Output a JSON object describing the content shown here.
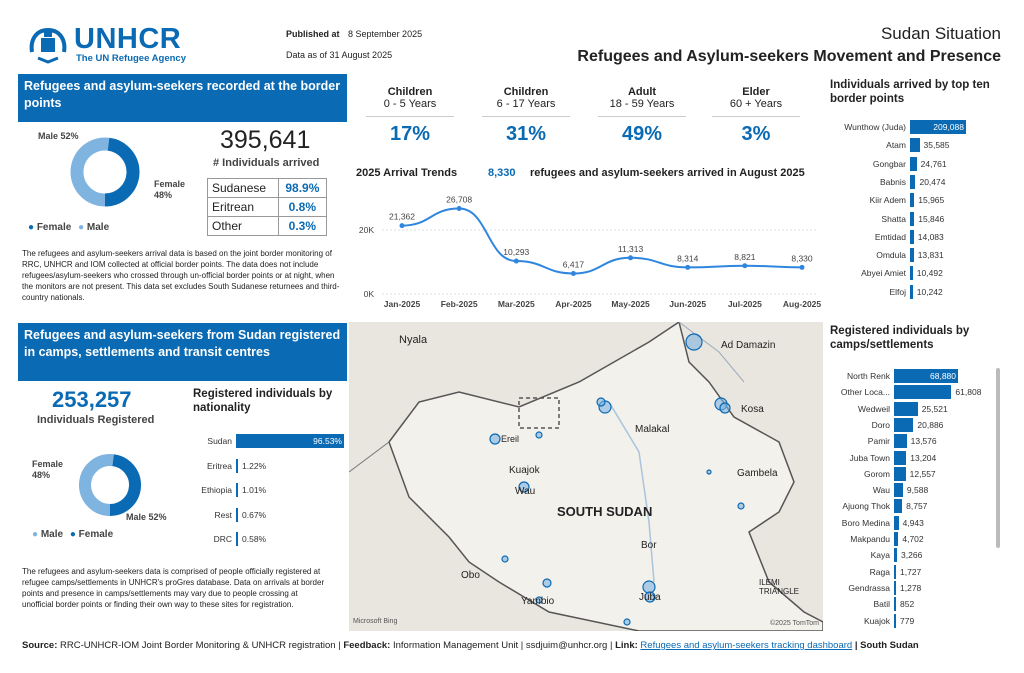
{
  "header": {
    "logo_text": "UNHCR",
    "logo_sub": "The UN Refugee Agency",
    "published_label": "Published at",
    "published_date": "8 September 2025",
    "data_as_of": "Data as of 31 August 2025",
    "situation": "Sudan Situation",
    "main_title": "Refugees and Asylum-seekers Movement and Presence"
  },
  "border": {
    "title": "Refugees and asylum-seekers recorded at the border points",
    "total": "395,641",
    "total_label": "# Individuals arrived",
    "donut": {
      "male_label": "Male 52%",
      "female_label": "Female 48%",
      "male_pct": 52,
      "female_pct": 48
    },
    "legend_female": "Female",
    "legend_male": "Male",
    "nationality": [
      {
        "name": "Sudanese",
        "pct": "98.9%"
      },
      {
        "name": "Eritrean",
        "pct": "0.8%"
      },
      {
        "name": "Other",
        "pct": "0.3%"
      }
    ],
    "note": "The refugees and asylum-seekers arrival data is based on the joint border monitoring of RRC, UNHCR and IOM collected at official border points. The data does not include refugees/asylum-seekers who crossed through un-official border points or at night, when the monitors are not present. This data set excludes South Sudanese returnees and third-country nationals."
  },
  "age_groups": [
    {
      "name": "Children",
      "range": "0 - 5 Years",
      "pct": "17%"
    },
    {
      "name": "Children",
      "range": "6 - 17 Years",
      "pct": "31%"
    },
    {
      "name": "Adult",
      "range": "18 - 59 Years",
      "pct": "49%"
    },
    {
      "name": "Elder",
      "range": "60 + Years",
      "pct": "3%"
    }
  ],
  "trend": {
    "title": "2025 Arrival Trends",
    "highlight_num": "8,330",
    "highlight_text": "refugees and asylum-seekers arrived in August 2025"
  },
  "chart_data": [
    {
      "type": "line",
      "title": "2025 Arrival Trends",
      "categories": [
        "Jan-2025",
        "Feb-2025",
        "Mar-2025",
        "Apr-2025",
        "May-2025",
        "Jun-2025",
        "Jul-2025",
        "Aug-2025"
      ],
      "values": [
        21362,
        26708,
        10293,
        6417,
        11313,
        8314,
        8821,
        8330
      ],
      "value_labels": [
        "21,362",
        "26,708",
        "10,293",
        "6,417",
        "11,313",
        "8,314",
        "8,821",
        "8,330"
      ],
      "ylim": [
        0,
        30000
      ],
      "yticks": [
        {
          "v": 0,
          "label": "0K"
        },
        {
          "v": 20000,
          "label": "20K"
        }
      ]
    },
    {
      "type": "bar",
      "title": "Individuals arrived by top ten border points",
      "categories": [
        "Wunthow (Juda)",
        "Atam",
        "Gongbar",
        "Babnis",
        "Kiir Adem",
        "Shatta",
        "Emtidad",
        "Omdula",
        "Abyei Amiet",
        "Elfoj"
      ],
      "values": [
        209088,
        35585,
        24761,
        20474,
        15965,
        15846,
        14083,
        13831,
        10492,
        10242
      ],
      "value_labels": [
        "209,088",
        "35,585",
        "24,761",
        "20,474",
        "15,965",
        "15,846",
        "14,083",
        "13,831",
        "10,492",
        "10,242"
      ]
    },
    {
      "type": "bar",
      "title": "Registered individuals by nationality",
      "categories": [
        "Sudan",
        "Eritrea",
        "Ethiopia",
        "Rest",
        "DRC"
      ],
      "values": [
        96.53,
        1.22,
        1.01,
        0.67,
        0.58
      ],
      "value_labels": [
        "96.53%",
        "1.22%",
        "1.01%",
        "0.67%",
        "0.58%"
      ]
    },
    {
      "type": "bar",
      "title": "Registered individuals by camps/settlements",
      "categories": [
        "North Renk",
        "Other Loca...",
        "Wedweil",
        "Doro",
        "Pamir",
        "Juba Town",
        "Gorom",
        "Wau",
        "Ajuong Thok",
        "Boro Medina",
        "Makpandu",
        "Kaya",
        "Raga",
        "Gendrassa",
        "Batil",
        "Kuajok"
      ],
      "values": [
        68880,
        61808,
        25521,
        20886,
        13576,
        13204,
        12557,
        9588,
        8757,
        4943,
        4702,
        3266,
        1727,
        1278,
        852,
        779
      ],
      "value_labels": [
        "68,880",
        "61,808",
        "25,521",
        "20,886",
        "13,576",
        "13,204",
        "12,557",
        "9,588",
        "8,757",
        "4,943",
        "4,702",
        "3,266",
        "1,727",
        "1,278",
        "852",
        "779"
      ]
    }
  ],
  "border_points": {
    "title": "Individuals arrived by top ten border points"
  },
  "registered": {
    "title": "Refugees and asylum-seekers from Sudan registered in camps, settlements and transit centres",
    "total": "253,257",
    "total_label": "Individuals Registered",
    "donut": {
      "female_label": "Female 48%",
      "male_label": "Male 52%",
      "male_pct": 52,
      "female_pct": 48
    },
    "legend_male": "Male",
    "legend_female": "Female",
    "nat_title": "Registered individuals by nationality",
    "note": "The refugees and asylum-seekers data is comprised of people officially registered at refugee camps/settlements in UNHCR's proGres database. Data on arrivals at border points and presence in camps/settlements may vary due to people crossing at unofficial border points or finding their own way to these sites for registration."
  },
  "camps": {
    "title": "Registered individuals by camps/settlements"
  },
  "map": {
    "country": "SOUTH SUDAN",
    "places": [
      "Nyala",
      "Ad Damazin",
      "Kosa",
      "Malakal",
      "Gambela",
      "Kuajok",
      "Wau",
      "Bor",
      "Juba",
      "Yambio",
      "Obo",
      "ILEMI TRIANGLE",
      "Ereil"
    ],
    "attribution_left": "Microsoft Bing",
    "attribution_right": "©2025 TomTom"
  },
  "footer": {
    "source_label": "Source:",
    "source_text": "RRC-UNHCR-IOM Joint Border Monitoring & UNHCR registration |",
    "feedback_label": "Feedback:",
    "feedback_text": "Information Management Unit | ssdjuim@unhcr.org |",
    "link_label": "Link:",
    "link_text": "Refugees and asylum-seekers tracking dashboard",
    "tail": "| South Sudan"
  },
  "colors": {
    "primary": "#0a6ab3",
    "light": "#7fb3e0"
  }
}
